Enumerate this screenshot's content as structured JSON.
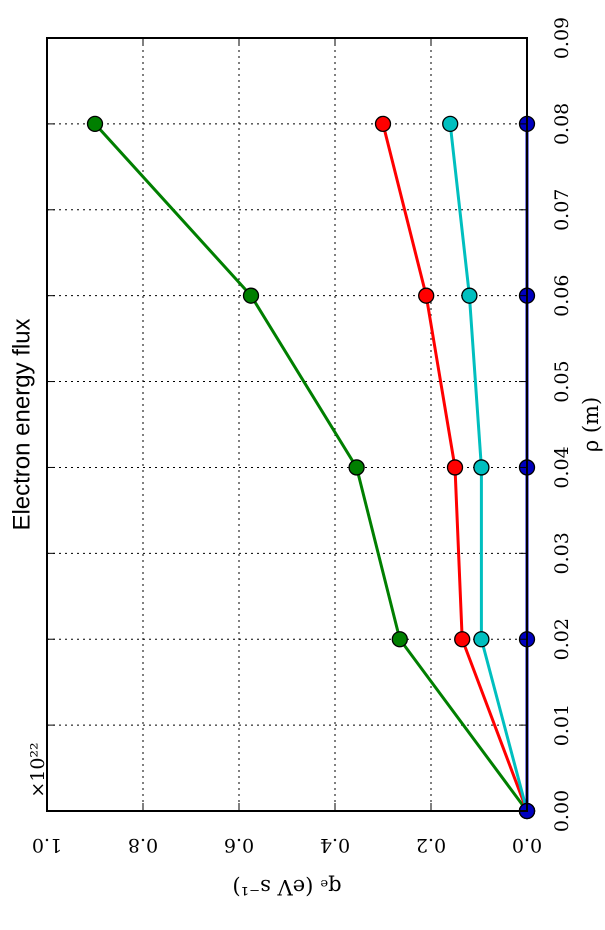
{
  "chart_data": {
    "type": "line",
    "title": "Electron energy flux",
    "xlabel": "ρ (m)",
    "ylabel": "qₑ (eV s⁻¹)",
    "x_multiplier": "",
    "y_multiplier": "×10²²",
    "xlim": [
      0,
      0.09
    ],
    "ylim": [
      0,
      1.0
    ],
    "x_ticks": [
      "0.00",
      "0.01",
      "0.02",
      "0.03",
      "0.04",
      "0.05",
      "0.06",
      "0.07",
      "0.08",
      "0.09"
    ],
    "y_ticks": [
      "0.0",
      "0.2",
      "0.4",
      "0.6",
      "0.8",
      "1.0"
    ],
    "grid": true,
    "orientation": "rotated-90-clockwise",
    "x": [
      0.0,
      0.02,
      0.04,
      0.06,
      0.08
    ],
    "series": [
      {
        "color": "#007f00",
        "values": [
          0.0,
          0.265,
          0.355,
          0.575,
          0.9
        ]
      },
      {
        "color": "#ff0000",
        "values": [
          0.0,
          0.135,
          0.15,
          0.21,
          0.3
        ]
      },
      {
        "color": "#00bfbf",
        "values": [
          0.0,
          0.095,
          0.095,
          0.12,
          0.16
        ]
      },
      {
        "color": "#0000bf",
        "values": [
          0.0,
          0.0,
          0.0,
          0.0,
          0.0
        ]
      }
    ]
  }
}
